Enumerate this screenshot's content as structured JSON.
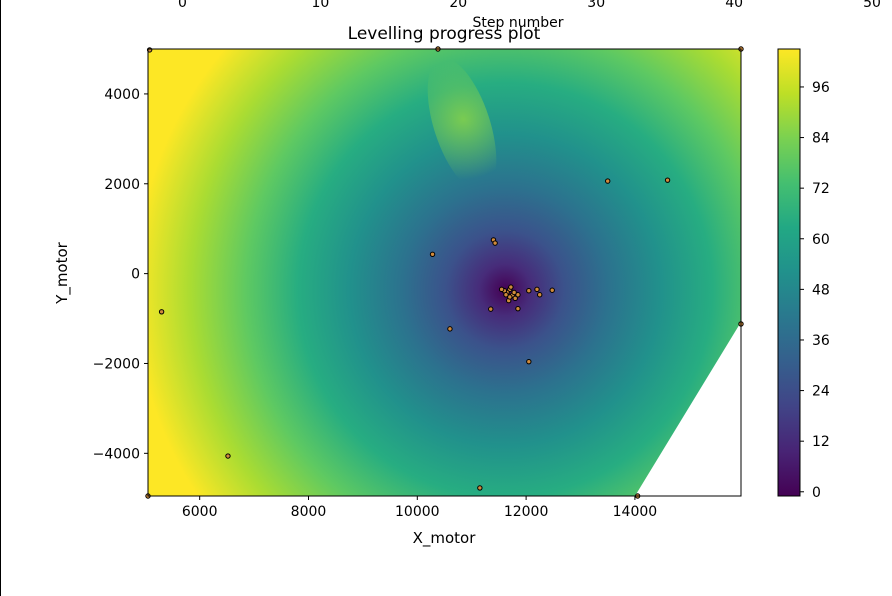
{
  "chart_data": {
    "type": "heatmap",
    "title": "Levelling progress plot",
    "xlabel": "X_motor",
    "ylabel": "Y_motor",
    "top_axis_label": "Step number",
    "xlim": [
      5050,
      15950
    ],
    "ylim": [
      -4950,
      5000
    ],
    "x_ticks": [
      6000,
      8000,
      10000,
      12000,
      14000
    ],
    "y_ticks": [
      4000,
      2000,
      0,
      -2000,
      -4000
    ],
    "top_xlim": [
      -2.5,
      40.5
    ],
    "top_ticks": [
      0,
      10,
      20,
      30,
      40,
      50
    ],
    "colorbar": {
      "range": [
        -1,
        105
      ],
      "ticks": [
        0,
        12,
        24,
        36,
        48,
        60,
        72,
        84,
        96
      ],
      "colormap": "viridis"
    },
    "points": [
      {
        "x": 11700,
        "y": -350
      },
      {
        "x": 11650,
        "y": -420
      },
      {
        "x": 11750,
        "y": -480
      },
      {
        "x": 11600,
        "y": -380
      },
      {
        "x": 11800,
        "y": -550
      },
      {
        "x": 11680,
        "y": -600
      },
      {
        "x": 11720,
        "y": -300
      },
      {
        "x": 11550,
        "y": -350
      },
      {
        "x": 11850,
        "y": -470
      },
      {
        "x": 11780,
        "y": -420
      },
      {
        "x": 11700,
        "y": -520
      },
      {
        "x": 11630,
        "y": -470
      },
      {
        "x": 12050,
        "y": -380
      },
      {
        "x": 12200,
        "y": -350
      },
      {
        "x": 12250,
        "y": -470
      },
      {
        "x": 12480,
        "y": -370
      },
      {
        "x": 11850,
        "y": -780
      },
      {
        "x": 11350,
        "y": -790
      },
      {
        "x": 11400,
        "y": 750
      },
      {
        "x": 11430,
        "y": 680
      },
      {
        "x": 10280,
        "y": 430
      },
      {
        "x": 10600,
        "y": -1230
      },
      {
        "x": 12050,
        "y": -1960
      },
      {
        "x": 13500,
        "y": 2060
      },
      {
        "x": 14600,
        "y": 2080
      },
      {
        "x": 5300,
        "y": -850
      },
      {
        "x": 6520,
        "y": -4060
      },
      {
        "x": 11150,
        "y": -4770
      },
      {
        "x": 5080,
        "y": 4980
      },
      {
        "x": 10380,
        "y": 5000
      },
      {
        "x": 15950,
        "y": 5000
      },
      {
        "x": 15950,
        "y": -1120
      },
      {
        "x": 14050,
        "y": -4950
      },
      {
        "x": 5050,
        "y": -4950
      }
    ],
    "grid": false
  }
}
